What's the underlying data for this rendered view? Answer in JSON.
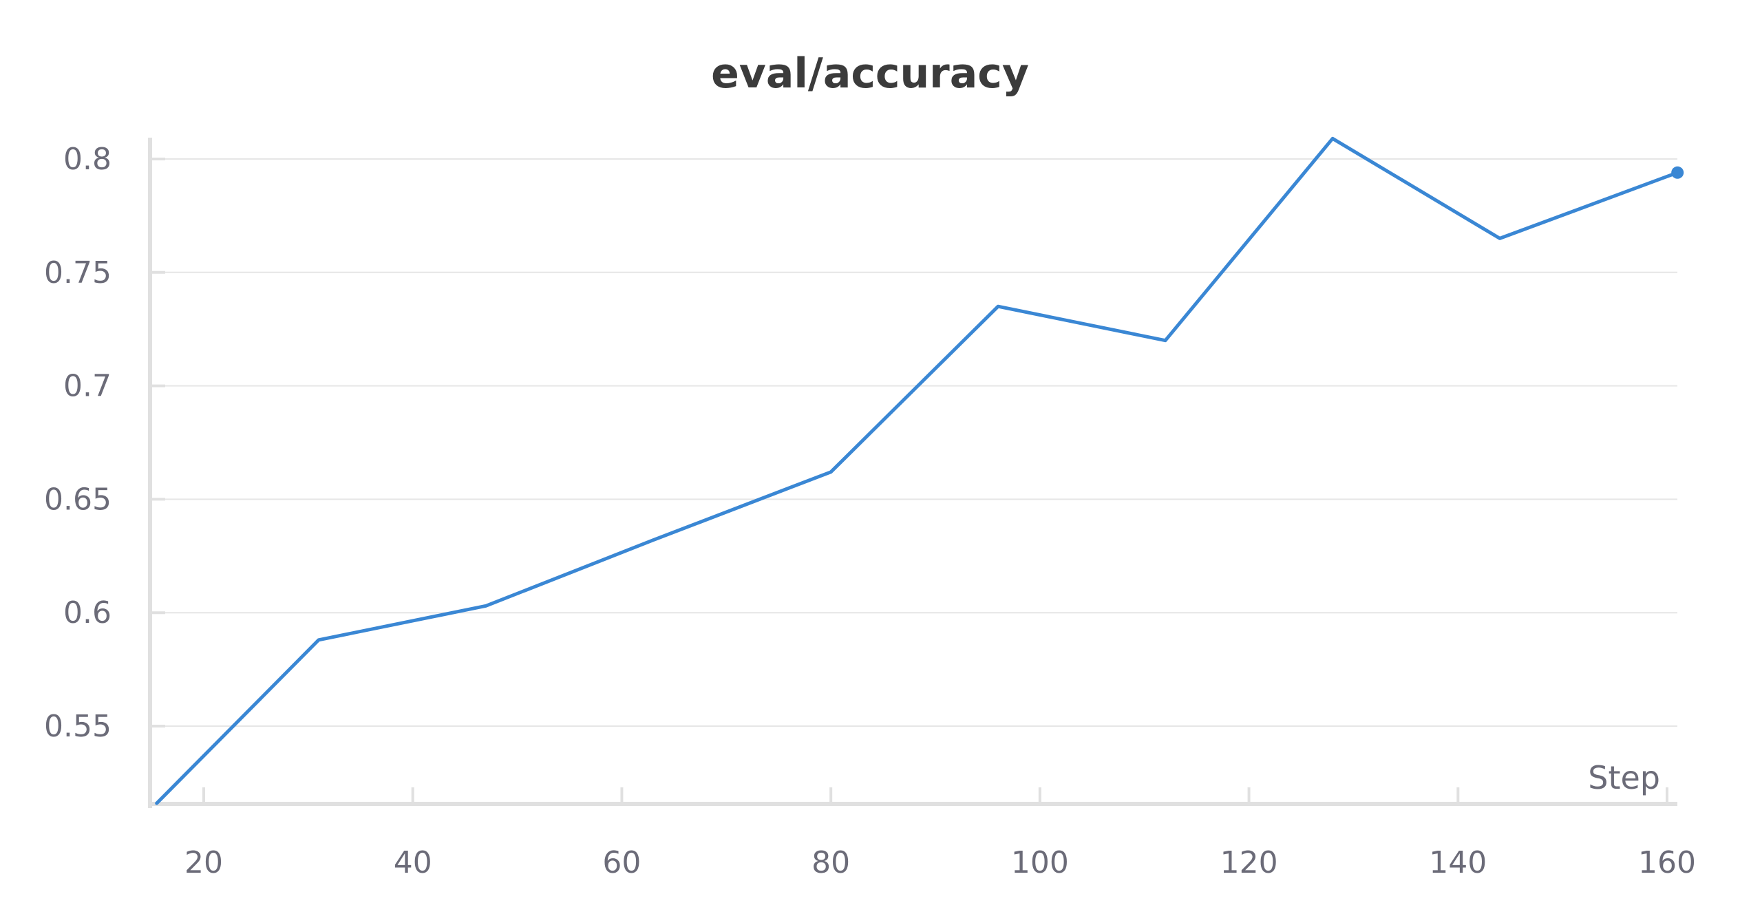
{
  "chart_data": {
    "type": "line",
    "title": "eval/accuracy",
    "xlabel": "Step",
    "ylabel": "",
    "xlim": [
      15.5,
      161
    ],
    "ylim": [
      0.516,
      0.808
    ],
    "x_ticks": [
      20,
      40,
      60,
      80,
      100,
      120,
      140,
      160
    ],
    "y_ticks": [
      0.55,
      0.6,
      0.65,
      0.7,
      0.75,
      0.8
    ],
    "y_tick_labels": [
      "0.55",
      "0.6",
      "0.65",
      "0.7",
      "0.75",
      "0.8"
    ],
    "grid": "horizontal",
    "series": [
      {
        "color": "#3a87d4",
        "x": [
          15.5,
          31,
          47,
          63,
          80,
          96,
          112,
          128,
          144,
          161
        ],
        "y": [
          0.516,
          0.588,
          0.603,
          0.632,
          0.662,
          0.735,
          0.72,
          0.809,
          0.765,
          0.794
        ],
        "end_marker": true
      }
    ]
  }
}
